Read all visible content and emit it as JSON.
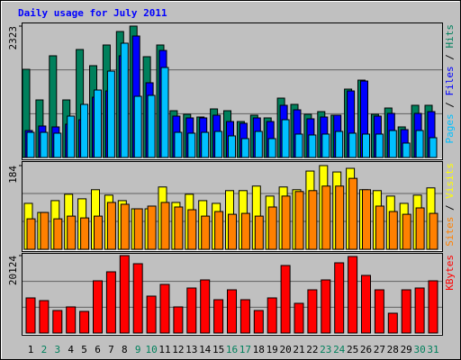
{
  "chart_data": [
    {
      "type": "bar",
      "title": "Daily usage for July 2011",
      "ylim": [
        0,
        2323
      ],
      "yticks": [
        2323
      ],
      "legend_separator": " / ",
      "series": [
        {
          "name": "Hits",
          "color": "#00805c",
          "values": [
            1559,
            1018,
            1798,
            1018,
            1909,
            1623,
            1989,
            2227,
            2323,
            1782,
            1989,
            827,
            764,
            716,
            859,
            827,
            636,
            748,
            700,
            1050,
            939,
            764,
            811,
            748,
            1209,
            1368,
            764,
            875,
            541,
            923,
            923
          ]
        },
        {
          "name": "Files",
          "color": "#0000ff",
          "values": [
            477,
            557,
            541,
            589,
            668,
            1066,
            1177,
            1798,
            2148,
            1321,
            1893,
            732,
            700,
            700,
            748,
            636,
            605,
            700,
            636,
            923,
            843,
            684,
            716,
            748,
            1177,
            1352,
            732,
            780,
            493,
            780,
            811
          ]
        },
        {
          "name": "Pages",
          "color": "#00c0ff",
          "values": [
            445,
            445,
            430,
            732,
            939,
            1193,
            1527,
            2021,
            1082,
            1098,
            1591,
            445,
            430,
            445,
            461,
            382,
            334,
            461,
            334,
            668,
            414,
            398,
            414,
            461,
            430,
            414,
            414,
            477,
            255,
            477,
            350
          ]
        }
      ]
    },
    {
      "type": "bar",
      "ylim": [
        0,
        184
      ],
      "yticks": [
        184
      ],
      "legend_separator": " / ",
      "series": [
        {
          "name": "Visits",
          "color": "#ffff00",
          "values": [
            101,
            81,
            107,
            121,
            111,
            131,
            119,
            107,
            89,
            89,
            137,
            103,
            121,
            107,
            101,
            129,
            129,
            139,
            117,
            137,
            131,
            172,
            184,
            170,
            178,
            131,
            129,
            117,
            101,
            119,
            135
          ]
        },
        {
          "name": "Sites",
          "color": "#ff8000",
          "values": [
            67,
            81,
            67,
            73,
            69,
            73,
            103,
            99,
            89,
            95,
            103,
            93,
            87,
            73,
            83,
            77,
            79,
            73,
            93,
            117,
            127,
            129,
            139,
            139,
            156,
            131,
            95,
            83,
            77,
            91,
            79
          ]
        }
      ]
    },
    {
      "type": "bar",
      "ylim": [
        0,
        20124
      ],
      "yticks": [
        20124
      ],
      "series": [
        {
          "name": "KBytes",
          "color": "#ff0000",
          "values": [
            9126,
            8424,
            5850,
            6786,
            5616,
            13572,
            15912,
            20124,
            18018,
            9594,
            12636,
            6786,
            11700,
            13806,
            8658,
            11232,
            8658,
            5850,
            9126,
            17550,
            7722,
            11232,
            13806,
            18252,
            19890,
            14976,
            11232,
            5148,
            11232,
            11700,
            13572
          ]
        }
      ],
      "categories": [
        "1",
        "2",
        "3",
        "4",
        "5",
        "6",
        "7",
        "8",
        "9",
        "10",
        "11",
        "12",
        "13",
        "14",
        "15",
        "16",
        "17",
        "18",
        "19",
        "20",
        "21",
        "22",
        "23",
        "24",
        "25",
        "26",
        "27",
        "28",
        "29",
        "30",
        "31"
      ],
      "category_colors": [
        "#000000",
        "#00805c",
        "#00805c",
        "#000000",
        "#000000",
        "#000000",
        "#000000",
        "#000000",
        "#00805c",
        "#00805c",
        "#000000",
        "#000000",
        "#000000",
        "#000000",
        "#000000",
        "#00805c",
        "#00805c",
        "#000000",
        "#000000",
        "#000000",
        "#000000",
        "#000000",
        "#00805c",
        "#00805c",
        "#000000",
        "#000000",
        "#000000",
        "#000000",
        "#000000",
        "#00805c",
        "#00805c"
      ]
    }
  ]
}
